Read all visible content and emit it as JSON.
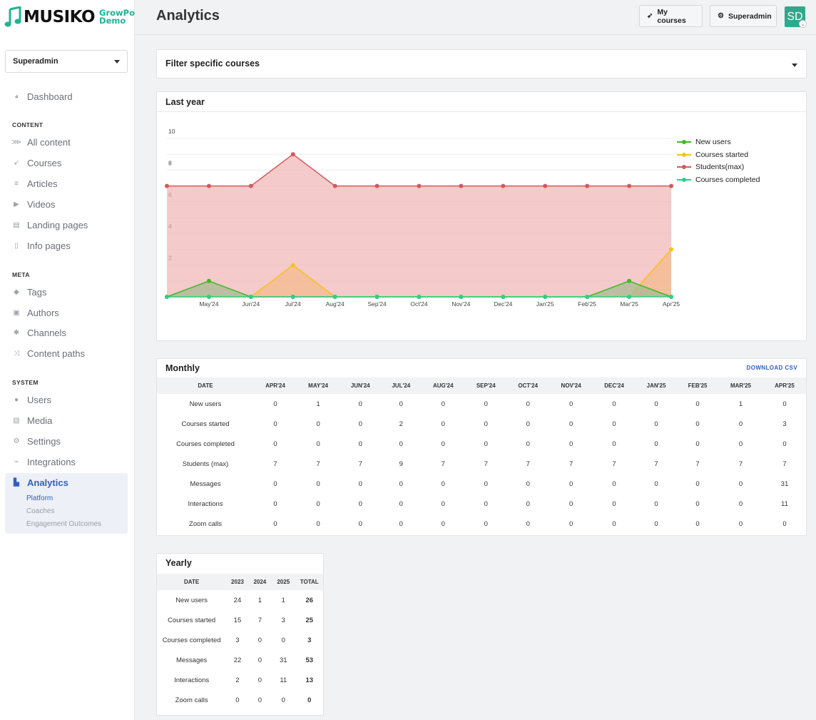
{
  "brand": {
    "name": "MUSIKO",
    "sub1": "GrowPoint",
    "sub2": "Demo",
    "color": "#1fb394"
  },
  "role_select": {
    "value": "Superadmin"
  },
  "nav": {
    "dashboard": "Dashboard",
    "content_heading": "CONTENT",
    "content": [
      {
        "label": "All content",
        "icon": "rss-icon"
      },
      {
        "label": "Courses",
        "icon": "rocket-icon"
      },
      {
        "label": "Articles",
        "icon": "lines-icon"
      },
      {
        "label": "Videos",
        "icon": "play-icon"
      },
      {
        "label": "Landing pages",
        "icon": "layout-icon"
      },
      {
        "label": "Info pages",
        "icon": "file-icon"
      }
    ],
    "meta_heading": "META",
    "meta": [
      {
        "label": "Tags",
        "icon": "tag-icon"
      },
      {
        "label": "Authors",
        "icon": "id-card-icon"
      },
      {
        "label": "Channels",
        "icon": "asterisk-icon"
      },
      {
        "label": "Content paths",
        "icon": "shuffle-icon"
      }
    ],
    "system_heading": "SYSTEM",
    "system": [
      {
        "label": "Users",
        "icon": "user-icon"
      },
      {
        "label": "Media",
        "icon": "image-icon"
      },
      {
        "label": "Settings",
        "icon": "gear-icon"
      },
      {
        "label": "Integrations",
        "icon": "plug-icon"
      }
    ],
    "analytics": "Analytics",
    "analytics_sub": [
      "Platform",
      "Coaches",
      "Engagement Outcomes"
    ]
  },
  "header": {
    "title": "Analytics",
    "my_courses": "My courses",
    "superadmin": "Superadmin",
    "avatar": "SD"
  },
  "filter": {
    "label": "Filter specific courses"
  },
  "last_year": {
    "title": "Last year"
  },
  "chart_data": {
    "type": "area",
    "categories": [
      "Apr'24",
      "May'24",
      "Jun'24",
      "Jul'24",
      "Aug'24",
      "Sep'24",
      "Oct'24",
      "Nov'24",
      "Dec'24",
      "Jan'25",
      "Feb'25",
      "Mar'25",
      "Apr'25"
    ],
    "x_tick_labels": [
      "May'24",
      "Jun'24",
      "Jul'24",
      "Aug'24",
      "Sep'24",
      "Oct'24",
      "Nov'24",
      "Dec'24",
      "Jan'25",
      "Feb'25",
      "Mar'25",
      "Apr'25"
    ],
    "y_ticks": [
      "2",
      "4",
      "6",
      "8",
      "10"
    ],
    "ylim": [
      0,
      10
    ],
    "legend_position": "top-right",
    "series": [
      {
        "name": "Students(max)",
        "color": "#d65a5a",
        "fill": "#f0b3b3",
        "values": [
          7,
          7,
          7,
          9,
          7,
          7,
          7,
          7,
          7,
          7,
          7,
          7,
          7
        ]
      },
      {
        "name": "Courses started",
        "color": "#f5c21b",
        "fill": "#f5b98a",
        "values": [
          0,
          0,
          0,
          2,
          0,
          0,
          0,
          0,
          0,
          0,
          0,
          0,
          3
        ]
      },
      {
        "name": "New users",
        "color": "#3dbb25",
        "fill": "#a3b98f",
        "values": [
          0,
          1,
          0,
          0,
          0,
          0,
          0,
          0,
          0,
          0,
          0,
          1,
          0
        ]
      },
      {
        "name": "Courses completed",
        "color": "#2fcf86",
        "fill": "#a8e8c6",
        "values": [
          0,
          0,
          0,
          0,
          0,
          0,
          0,
          0,
          0,
          0,
          0,
          0,
          0
        ]
      }
    ],
    "legend": [
      {
        "name": "New users",
        "color": "#3dbb25"
      },
      {
        "name": "Courses started",
        "color": "#f5c21b"
      },
      {
        "name": "Students(max)",
        "color": "#d65a5a"
      },
      {
        "name": "Courses completed",
        "color": "#2fcf86"
      }
    ]
  },
  "monthly": {
    "title": "Monthly",
    "download": "DOWNLOAD CSV",
    "columns": [
      "DATE",
      "APR'24",
      "MAY'24",
      "JUN'24",
      "JUL'24",
      "AUG'24",
      "SEP'24",
      "OCT'24",
      "NOV'24",
      "DEC'24",
      "JAN'25",
      "FEB'25",
      "MAR'25",
      "APR'25"
    ],
    "rows": [
      [
        "New users",
        "0",
        "1",
        "0",
        "0",
        "0",
        "0",
        "0",
        "0",
        "0",
        "0",
        "0",
        "1",
        "0"
      ],
      [
        "Courses started",
        "0",
        "0",
        "0",
        "2",
        "0",
        "0",
        "0",
        "0",
        "0",
        "0",
        "0",
        "0",
        "3"
      ],
      [
        "Courses completed",
        "0",
        "0",
        "0",
        "0",
        "0",
        "0",
        "0",
        "0",
        "0",
        "0",
        "0",
        "0",
        "0"
      ],
      [
        "Students (max)",
        "7",
        "7",
        "7",
        "9",
        "7",
        "7",
        "7",
        "7",
        "7",
        "7",
        "7",
        "7",
        "7"
      ],
      [
        "Messages",
        "0",
        "0",
        "0",
        "0",
        "0",
        "0",
        "0",
        "0",
        "0",
        "0",
        "0",
        "0",
        "31"
      ],
      [
        "Interactions",
        "0",
        "0",
        "0",
        "0",
        "0",
        "0",
        "0",
        "0",
        "0",
        "0",
        "0",
        "0",
        "11"
      ],
      [
        "Zoom calls",
        "0",
        "0",
        "0",
        "0",
        "0",
        "0",
        "0",
        "0",
        "0",
        "0",
        "0",
        "0",
        "0"
      ]
    ]
  },
  "yearly": {
    "title": "Yearly",
    "columns": [
      "DATE",
      "2023",
      "2024",
      "2025",
      "TOTAL"
    ],
    "rows": [
      [
        "New users",
        "24",
        "1",
        "1",
        "26"
      ],
      [
        "Courses started",
        "15",
        "7",
        "3",
        "25"
      ],
      [
        "Courses completed",
        "3",
        "0",
        "0",
        "3"
      ],
      [
        "Messages",
        "22",
        "0",
        "31",
        "53"
      ],
      [
        "Interactions",
        "2",
        "0",
        "11",
        "13"
      ],
      [
        "Zoom calls",
        "0",
        "0",
        "0",
        "0"
      ]
    ]
  }
}
